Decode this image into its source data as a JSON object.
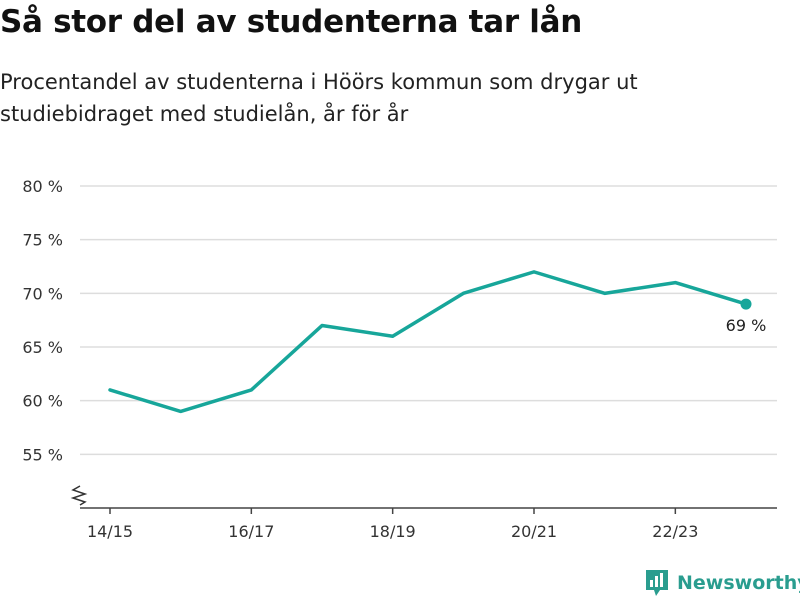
{
  "title": "Så stor del av studenterna tar lån",
  "subtitle": "Procentandel av studenterna i Höörs kommun som drygar ut studiebidraget med studielån, år för år",
  "brand": {
    "name": "Newsworthy"
  },
  "colors": {
    "line": "#17a69a",
    "grid": "#dddddd",
    "axis": "#444444",
    "brand": "#2a9d8f"
  },
  "chart_data": {
    "type": "line",
    "x": [
      "14/15",
      "15/16",
      "16/17",
      "17/18",
      "18/19",
      "19/20",
      "20/21",
      "21/22",
      "22/23",
      "23/24"
    ],
    "x_tick_labels": [
      "14/15",
      "16/17",
      "18/19",
      "20/21",
      "22/23"
    ],
    "series": [
      {
        "values": [
          61,
          59,
          61,
          67,
          66,
          70,
          72,
          70,
          71,
          69
        ]
      }
    ],
    "yticks": [
      55,
      60,
      65,
      70,
      75,
      80
    ],
    "ytick_labels": [
      "55 %",
      "60 %",
      "65 %",
      "70 %",
      "75 %",
      "80 %"
    ],
    "ylim": [
      50,
      80
    ],
    "y_axis_break": true,
    "grid": true,
    "end_label": "69 %",
    "xlabel": "",
    "ylabel": ""
  }
}
